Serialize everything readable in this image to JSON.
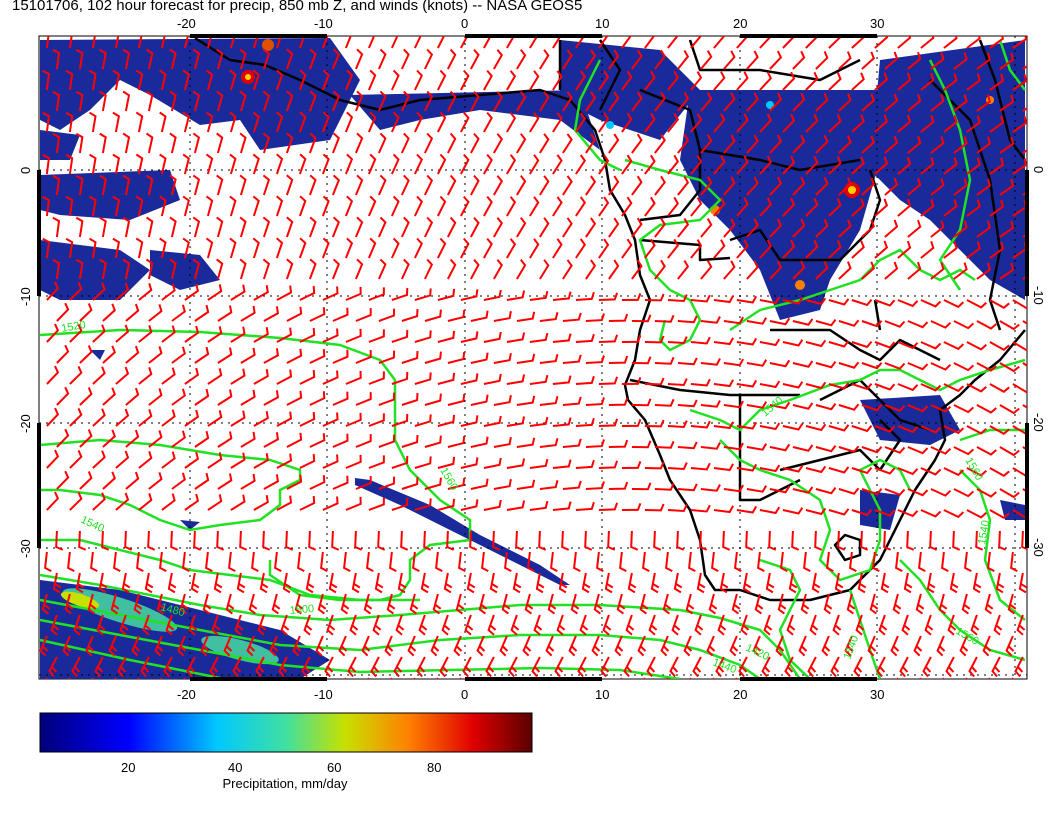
{
  "title": "15101706, 102 hour forecast for precip, 850 mb Z, and winds (knots) -- NASA GEOS5",
  "axes": {
    "lon_ticks": [
      "-20",
      "-10",
      "0",
      "10",
      "20",
      "30"
    ],
    "lat_ticks": [
      "0",
      "-10",
      "-20",
      "-30"
    ],
    "lon_range": [
      -31,
      41
    ],
    "lat_range": [
      -39,
      10
    ]
  },
  "contour_labels": [
    "1520",
    "1540",
    "1560",
    "1480",
    "1500",
    "1440",
    "1420",
    "1540",
    "1560",
    "1540",
    "1540",
    "1560"
  ],
  "colorbar": {
    "tick_labels": [
      "20",
      "40",
      "60",
      "80"
    ],
    "range": [
      0,
      100
    ],
    "label": "Precipitation, mm/day"
  },
  "colors": {
    "precip_low": "#1a2a9a",
    "wind_barbs": "#ff0000",
    "height_contours": "#22e022",
    "coastline": "#000000"
  }
}
